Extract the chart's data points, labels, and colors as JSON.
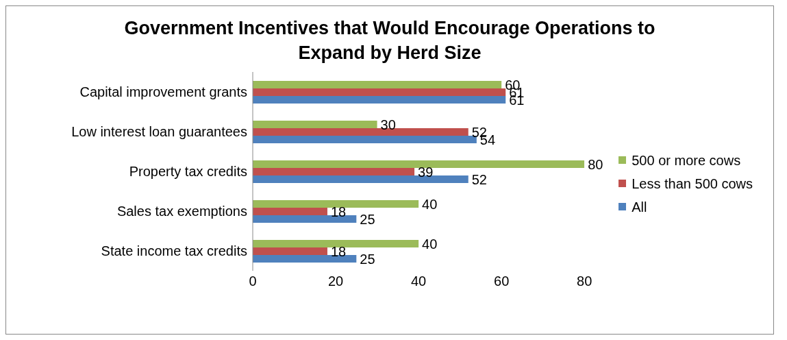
{
  "chart_data": {
    "type": "bar",
    "orientation": "horizontal",
    "title": "Government Incentives that Would Encourage Operations to Expand by Herd Size",
    "categories": [
      "Capital improvement grants",
      "Low interest  loan guarantees",
      "Property tax credits",
      "Sales tax exemptions",
      "State income tax credits"
    ],
    "series": [
      {
        "name": "500 or more cows",
        "color": "#9bbb59",
        "values": [
          60,
          30,
          80,
          40,
          40
        ]
      },
      {
        "name": "Less than 500 cows",
        "color": "#c0504d",
        "values": [
          61,
          52,
          39,
          18,
          18
        ]
      },
      {
        "name": "All",
        "color": "#4f81bd",
        "values": [
          61,
          54,
          52,
          25,
          25
        ]
      }
    ],
    "xlim": [
      0,
      80
    ],
    "xticks": [
      0,
      20,
      40,
      60,
      80
    ],
    "data_labels": true,
    "legend": "right",
    "grid": false
  }
}
